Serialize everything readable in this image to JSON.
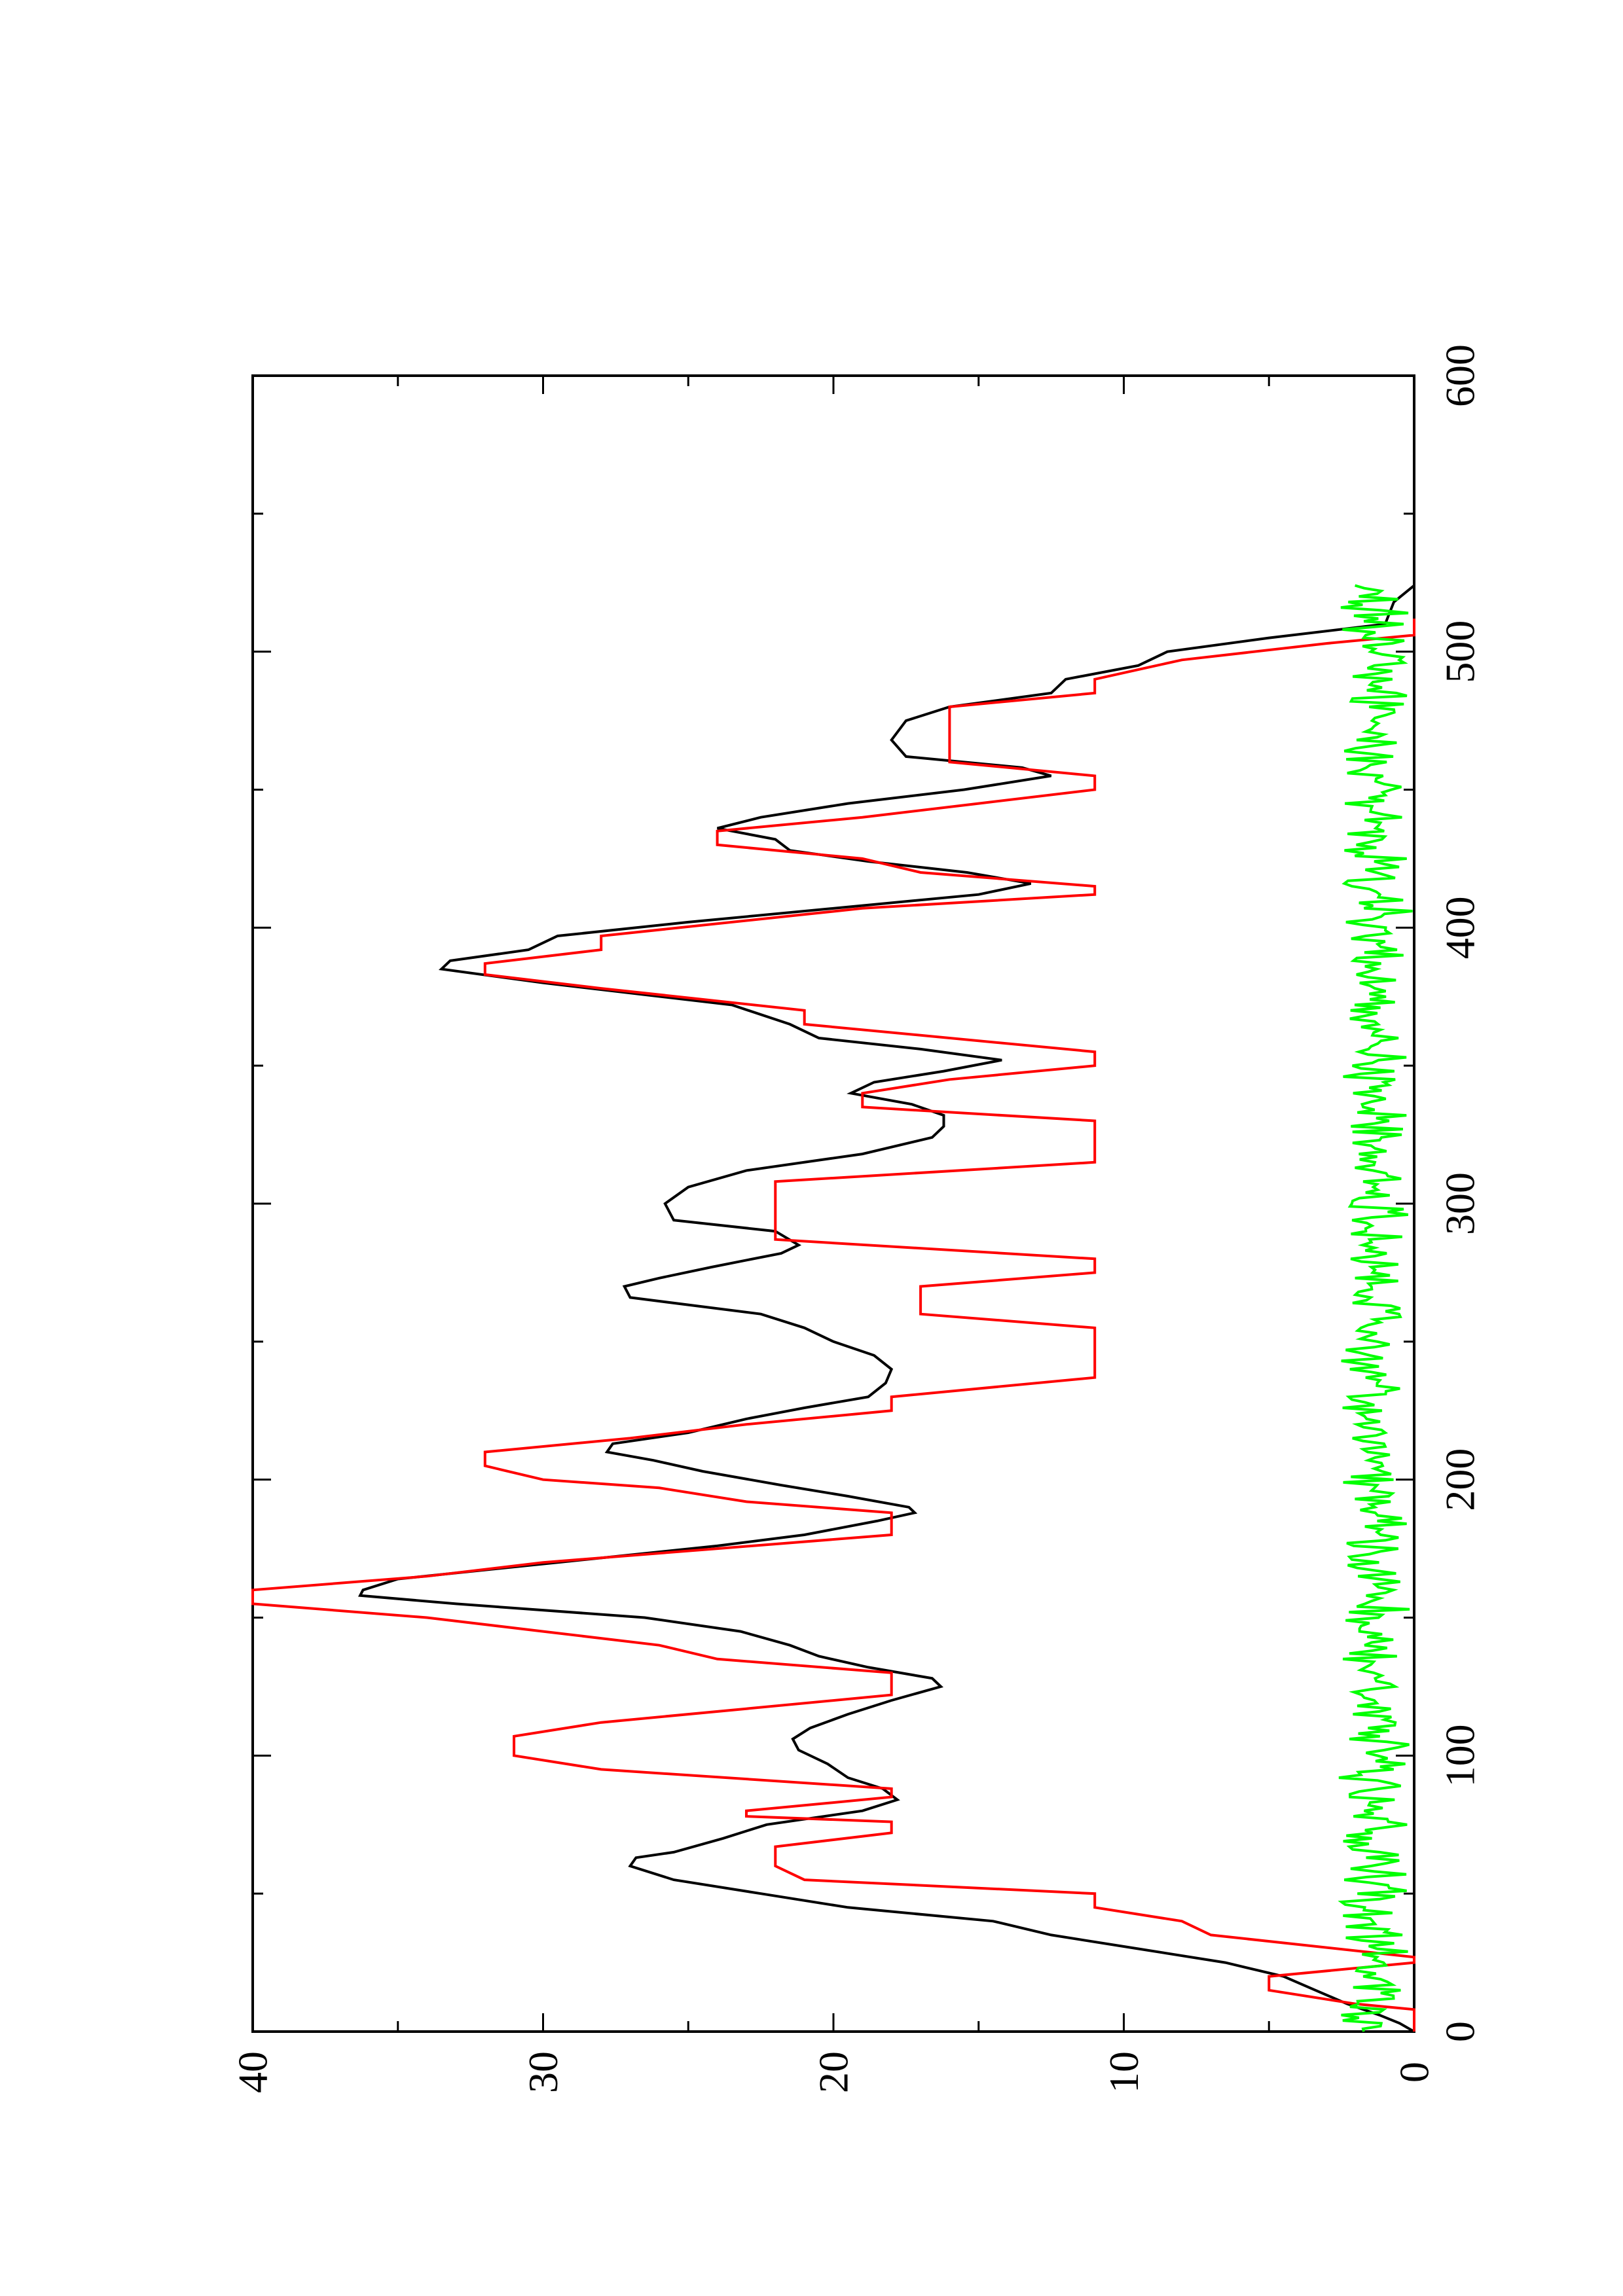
{
  "chart_data": {
    "type": "line",
    "orientation": "rotated 90 degrees counter-clockwise (x axis runs bottom-to-top, y axis runs right-to-left)",
    "title": "",
    "xlabel": "",
    "ylabel": "",
    "xlim": [
      0,
      600
    ],
    "ylim": [
      0,
      40
    ],
    "x_ticks": [
      0,
      100,
      200,
      300,
      400,
      500,
      600
    ],
    "y_ticks": [
      0,
      10,
      20,
      30,
      40
    ],
    "grid": false,
    "legend": "none",
    "series": [
      {
        "color": "#000000",
        "points": [
          [
            0,
            0
          ],
          [
            3,
            0.5
          ],
          [
            6,
            1.2
          ],
          [
            10,
            2.3
          ],
          [
            15,
            3.4
          ],
          [
            20,
            4.5
          ],
          [
            25,
            6.5
          ],
          [
            30,
            9.5
          ],
          [
            35,
            12.5
          ],
          [
            40,
            14.5
          ],
          [
            45,
            19.5
          ],
          [
            50,
            22.5
          ],
          [
            55,
            25.5
          ],
          [
            60,
            27
          ],
          [
            63,
            26.8
          ],
          [
            65,
            25.5
          ],
          [
            70,
            23.8
          ],
          [
            75,
            22.3
          ],
          [
            80,
            19
          ],
          [
            84,
            17.8
          ],
          [
            88,
            18.3
          ],
          [
            92,
            19.5
          ],
          [
            97,
            20.2
          ],
          [
            102,
            21.2
          ],
          [
            106,
            21.4
          ],
          [
            110,
            20.8
          ],
          [
            115,
            19.5
          ],
          [
            120,
            18
          ],
          [
            125,
            16.3
          ],
          [
            128,
            16.6
          ],
          [
            132,
            18.8
          ],
          [
            136,
            20.5
          ],
          [
            140,
            21.5
          ],
          [
            145,
            23.2
          ],
          [
            150,
            26.5
          ],
          [
            155,
            33
          ],
          [
            158,
            36.3
          ],
          [
            160,
            36.2
          ],
          [
            164,
            35
          ],
          [
            170,
            29.5
          ],
          [
            176,
            24
          ],
          [
            180,
            21
          ],
          [
            185,
            18.5
          ],
          [
            188,
            17.2
          ],
          [
            190,
            17.4
          ],
          [
            194,
            19.5
          ],
          [
            198,
            21.8
          ],
          [
            203,
            24.5
          ],
          [
            207,
            26.2
          ],
          [
            210,
            27.8
          ],
          [
            213,
            27.6
          ],
          [
            217,
            25
          ],
          [
            222,
            23
          ],
          [
            226,
            21
          ],
          [
            230,
            18.8
          ],
          [
            235,
            18.2
          ],
          [
            240,
            18
          ],
          [
            245,
            18.6
          ],
          [
            250,
            20
          ],
          [
            255,
            21
          ],
          [
            260,
            22.5
          ],
          [
            266,
            27
          ],
          [
            270,
            27.2
          ],
          [
            273,
            26
          ],
          [
            277,
            24.2
          ],
          [
            282,
            21.8
          ],
          [
            285,
            21.2
          ],
          [
            290,
            22
          ],
          [
            294,
            25.5
          ],
          [
            300,
            25.8
          ],
          [
            306,
            25
          ],
          [
            312,
            23
          ],
          [
            318,
            19
          ],
          [
            324,
            16.6
          ],
          [
            328,
            16.2
          ],
          [
            332,
            16.2
          ],
          [
            336,
            17.3
          ],
          [
            340,
            19.4
          ],
          [
            344,
            18.6
          ],
          [
            348,
            16.2
          ],
          [
            352,
            14.2
          ],
          [
            356,
            17
          ],
          [
            360,
            20.5
          ],
          [
            365,
            21.5
          ],
          [
            372,
            23.5
          ],
          [
            380,
            30
          ],
          [
            385,
            33.5
          ],
          [
            388,
            33.2
          ],
          [
            392,
            30.5
          ],
          [
            397,
            29.5
          ],
          [
            402,
            25
          ],
          [
            408,
            19
          ],
          [
            412,
            15
          ],
          [
            416,
            13.2
          ],
          [
            420,
            15.4
          ],
          [
            424,
            18.8
          ],
          [
            428,
            21.5
          ],
          [
            432,
            22
          ],
          [
            436,
            24
          ],
          [
            440,
            22.5
          ],
          [
            445,
            19.5
          ],
          [
            450,
            15.5
          ],
          [
            455,
            12.5
          ],
          [
            458,
            13.5
          ],
          [
            462,
            17.5
          ],
          [
            468,
            18
          ],
          [
            475,
            17.5
          ],
          [
            480,
            16
          ],
          [
            485,
            12.5
          ],
          [
            490,
            12
          ],
          [
            495,
            9.5
          ],
          [
            500,
            8.5
          ],
          [
            505,
            5
          ],
          [
            510,
            1
          ],
          [
            518,
            0.7
          ],
          [
            524,
            0
          ]
        ]
      },
      {
        "color": "#ff0000",
        "points": [
          [
            0,
            0
          ],
          [
            8,
            0
          ],
          [
            10,
            2
          ],
          [
            15,
            5
          ],
          [
            20,
            5
          ],
          [
            25,
            0
          ],
          [
            27,
            0
          ],
          [
            35,
            7
          ],
          [
            40,
            8
          ],
          [
            45,
            11
          ],
          [
            50,
            11
          ],
          [
            55,
            21
          ],
          [
            60,
            22
          ],
          [
            67,
            22
          ],
          [
            72,
            18
          ],
          [
            76,
            18
          ],
          [
            78,
            23
          ],
          [
            80,
            23
          ],
          [
            85,
            18
          ],
          [
            88,
            18
          ],
          [
            95,
            28
          ],
          [
            100,
            31
          ],
          [
            107,
            31
          ],
          [
            112,
            28
          ],
          [
            117,
            23
          ],
          [
            122,
            18
          ],
          [
            130,
            18
          ],
          [
            135,
            24
          ],
          [
            140,
            26
          ],
          [
            145,
            30
          ],
          [
            150,
            34
          ],
          [
            155,
            40
          ],
          [
            160,
            40
          ],
          [
            165,
            34
          ],
          [
            170,
            30
          ],
          [
            175,
            24
          ],
          [
            180,
            18
          ],
          [
            188,
            18
          ],
          [
            192,
            23
          ],
          [
            197,
            26
          ],
          [
            200,
            30
          ],
          [
            205,
            32
          ],
          [
            210,
            32
          ],
          [
            215,
            27
          ],
          [
            220,
            23
          ],
          [
            225,
            18
          ],
          [
            230,
            18
          ],
          [
            237,
            11
          ],
          [
            255,
            11
          ],
          [
            260,
            17
          ],
          [
            270,
            17
          ],
          [
            275,
            11
          ],
          [
            280,
            11
          ],
          [
            287,
            22
          ],
          [
            300,
            22
          ],
          [
            308,
            22
          ],
          [
            315,
            11
          ],
          [
            330,
            11
          ],
          [
            335,
            19
          ],
          [
            340,
            19
          ],
          [
            345,
            16
          ],
          [
            350,
            11
          ],
          [
            355,
            11
          ],
          [
            365,
            21
          ],
          [
            370,
            21
          ],
          [
            378,
            28
          ],
          [
            383,
            32
          ],
          [
            387,
            32
          ],
          [
            392,
            28
          ],
          [
            397,
            28
          ],
          [
            407,
            19
          ],
          [
            412,
            11
          ],
          [
            415,
            11
          ],
          [
            420,
            17
          ],
          [
            425,
            19
          ],
          [
            430,
            24
          ],
          [
            435,
            24
          ],
          [
            440,
            19
          ],
          [
            445,
            15
          ],
          [
            450,
            11
          ],
          [
            455,
            11
          ],
          [
            460,
            16
          ],
          [
            480,
            16
          ],
          [
            485,
            11
          ],
          [
            490,
            11
          ],
          [
            497,
            8
          ],
          [
            503,
            3
          ],
          [
            506,
            0
          ],
          [
            512,
            0
          ]
        ]
      },
      {
        "color": "#00ff00",
        "type": "noise",
        "x_start": 0,
        "x_end": 524,
        "y_approx_range": [
          0,
          2.7
        ]
      }
    ]
  }
}
